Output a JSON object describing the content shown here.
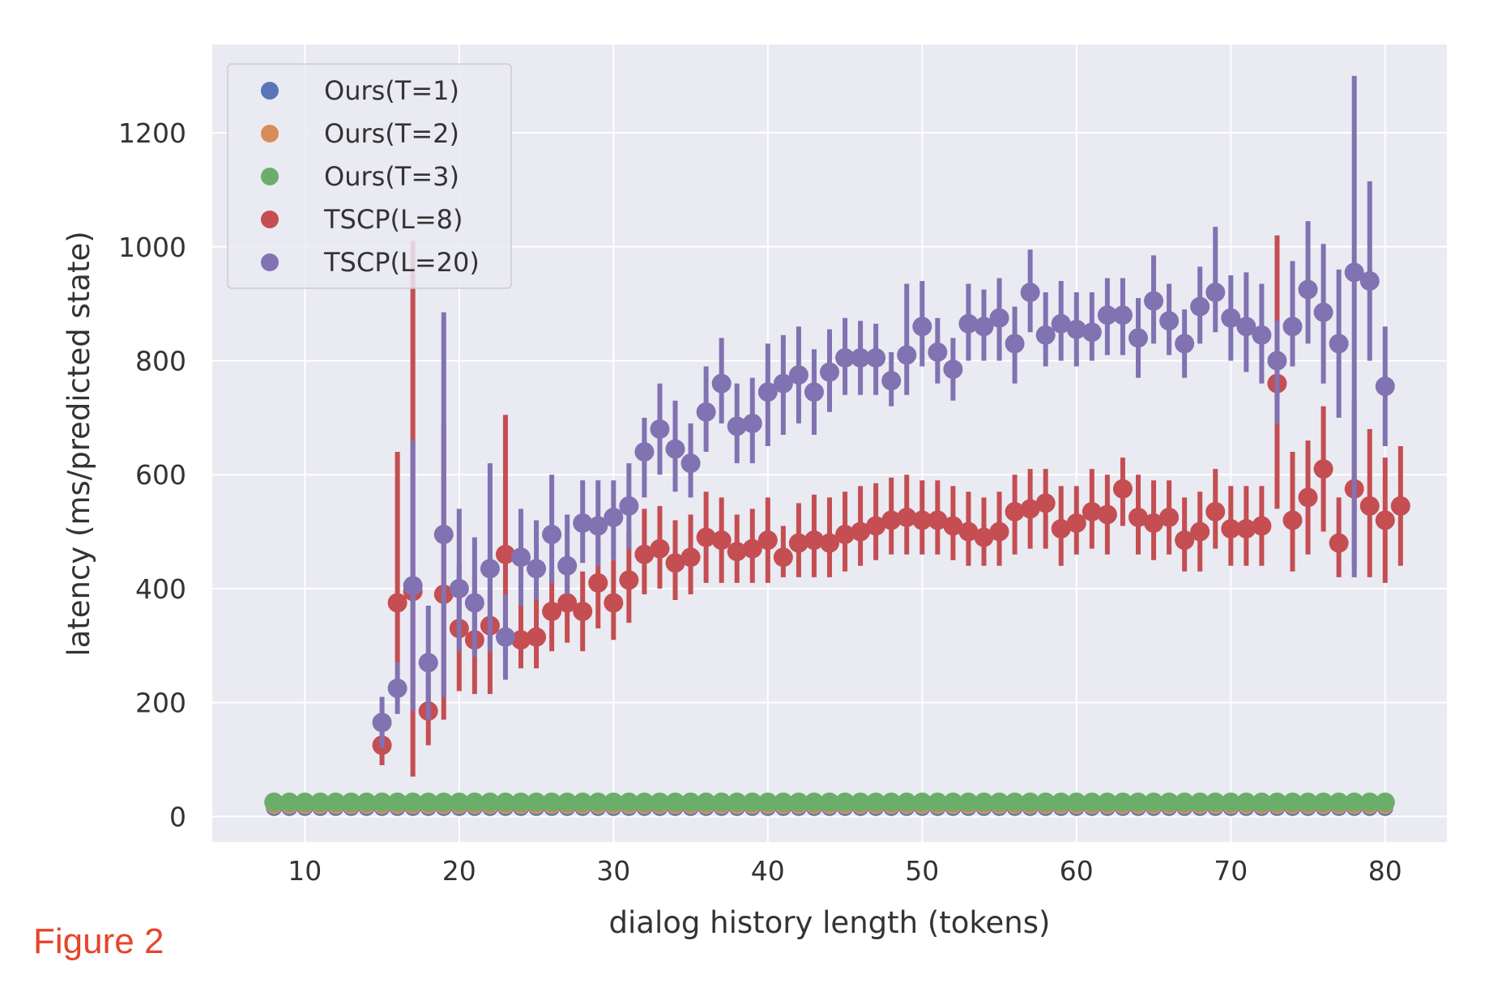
{
  "figure_label": "Figure 2",
  "chart_data": {
    "type": "scatter",
    "xlabel": "dialog history length (tokens)",
    "ylabel": "latency (ms/predicted state)",
    "xlim": [
      4,
      84
    ],
    "ylim": [
      -45,
      1355
    ],
    "x_ticks": [
      10,
      20,
      30,
      40,
      50,
      60,
      70,
      80
    ],
    "y_ticks": [
      0,
      200,
      400,
      600,
      800,
      1000,
      1200
    ],
    "grid": true,
    "legend_position": "top-left",
    "series": [
      {
        "name": "Ours(T=1)",
        "color": "#5975b8",
        "radius": 10,
        "x_start": 8,
        "x_end": 80,
        "y": [
          15,
          15,
          15,
          15,
          15,
          15,
          15,
          15,
          15,
          15,
          15,
          15,
          15,
          15,
          15,
          15,
          15,
          15,
          15,
          15,
          15,
          15,
          15,
          15,
          15,
          15,
          15,
          15,
          15,
          15,
          15,
          15,
          15,
          15,
          15,
          15,
          15,
          15,
          15,
          15,
          15,
          15,
          15,
          15,
          15,
          15,
          15,
          15,
          15,
          15,
          15,
          15,
          15,
          15,
          15,
          15,
          15,
          15,
          15,
          15,
          15,
          15,
          15,
          15,
          15,
          15,
          15,
          15,
          15,
          15,
          15,
          15,
          15
        ]
      },
      {
        "name": "Ours(T=2)",
        "color": "#d88c56",
        "radius": 10,
        "x_start": 8,
        "x_end": 80,
        "y": [
          18,
          18,
          18,
          18,
          18,
          18,
          18,
          18,
          18,
          18,
          18,
          18,
          18,
          18,
          18,
          18,
          18,
          18,
          18,
          18,
          18,
          18,
          18,
          18,
          18,
          18,
          18,
          18,
          18,
          18,
          18,
          18,
          18,
          18,
          18,
          18,
          18,
          18,
          18,
          18,
          18,
          18,
          18,
          18,
          18,
          18,
          18,
          18,
          18,
          18,
          18,
          18,
          18,
          18,
          18,
          18,
          18,
          18,
          18,
          18,
          18,
          18,
          18,
          18,
          18,
          18,
          18,
          18,
          18,
          18,
          18,
          18,
          18
        ]
      },
      {
        "name": "Ours(T=3)",
        "color": "#6aae6a",
        "radius": 12,
        "x_start": 8,
        "x_end": 80,
        "y": [
          25,
          25,
          25,
          25,
          25,
          25,
          25,
          25,
          25,
          25,
          25,
          25,
          25,
          25,
          25,
          25,
          25,
          25,
          25,
          25,
          25,
          25,
          25,
          25,
          25,
          25,
          25,
          25,
          25,
          25,
          25,
          25,
          25,
          25,
          25,
          25,
          25,
          25,
          25,
          25,
          25,
          25,
          25,
          25,
          25,
          25,
          25,
          25,
          25,
          25,
          25,
          25,
          25,
          25,
          25,
          25,
          25,
          25,
          25,
          25,
          25,
          25,
          25,
          25,
          25,
          25,
          25,
          25,
          25,
          25,
          25,
          25,
          25
        ]
      },
      {
        "name": "TSCP(L=8)",
        "color": "#c44e52",
        "radius": 12,
        "x_start": 15,
        "x_end": 80,
        "y": [
          125,
          375,
          395,
          185,
          390,
          330,
          310,
          335,
          460,
          310,
          315,
          360,
          375,
          360,
          410,
          375,
          415,
          460,
          470,
          445,
          455,
          490,
          485,
          465,
          470,
          485,
          455,
          480,
          485,
          480,
          495,
          500,
          510,
          520,
          525,
          520,
          520,
          510,
          500,
          490,
          500,
          535,
          540,
          550,
          505,
          515,
          535,
          530,
          575,
          525,
          515,
          525,
          485,
          500,
          535,
          505,
          505,
          510,
          760,
          520,
          560,
          610,
          480,
          575,
          545,
          520,
          545
        ],
        "lo": [
          90,
          270,
          70,
          125,
          170,
          220,
          215,
          215,
          280,
          260,
          260,
          290,
          305,
          290,
          330,
          310,
          340,
          390,
          400,
          380,
          390,
          410,
          410,
          410,
          410,
          410,
          420,
          420,
          420,
          420,
          430,
          440,
          450,
          460,
          460,
          460,
          460,
          450,
          440,
          440,
          440,
          460,
          470,
          470,
          440,
          460,
          470,
          460,
          510,
          460,
          450,
          460,
          430,
          430,
          470,
          440,
          440,
          440,
          540,
          430,
          460,
          500,
          420,
          440,
          420,
          410,
          440
        ],
        "hi": [
          160,
          640,
          1010,
          250,
          690,
          440,
          420,
          460,
          705,
          380,
          380,
          430,
          450,
          430,
          490,
          450,
          500,
          540,
          545,
          520,
          530,
          570,
          560,
          530,
          540,
          560,
          510,
          550,
          565,
          560,
          570,
          580,
          585,
          595,
          600,
          590,
          590,
          580,
          570,
          560,
          570,
          600,
          610,
          610,
          580,
          580,
          610,
          600,
          630,
          600,
          590,
          590,
          560,
          570,
          610,
          580,
          580,
          580,
          1020,
          640,
          660,
          720,
          560,
          730,
          680,
          630,
          650
        ]
      },
      {
        "name": "TSCP(L=20)",
        "color": "#8172b2",
        "radius": 12,
        "x_start": 15,
        "x_end": 80,
        "y": [
          165,
          225,
          405,
          270,
          495,
          400,
          375,
          435,
          315,
          455,
          435,
          495,
          440,
          515,
          510,
          525,
          545,
          640,
          680,
          645,
          620,
          710,
          760,
          685,
          690,
          745,
          760,
          775,
          745,
          780,
          805,
          805,
          805,
          765,
          810,
          860,
          815,
          785,
          865,
          860,
          875,
          830,
          920,
          845,
          865,
          855,
          850,
          880,
          880,
          840,
          905,
          870,
          830,
          895,
          920,
          875,
          860,
          845,
          800,
          860,
          925,
          885,
          830,
          955,
          940,
          755
        ],
        "lo": [
          120,
          180,
          185,
          170,
          210,
          290,
          280,
          290,
          240,
          370,
          380,
          410,
          390,
          445,
          440,
          450,
          470,
          560,
          600,
          570,
          560,
          640,
          690,
          620,
          620,
          650,
          670,
          690,
          670,
          710,
          740,
          740,
          740,
          720,
          740,
          790,
          760,
          730,
          800,
          800,
          800,
          760,
          850,
          790,
          800,
          790,
          800,
          810,
          810,
          770,
          830,
          810,
          770,
          830,
          850,
          800,
          780,
          760,
          690,
          790,
          830,
          760,
          700,
          420,
          800,
          650
        ],
        "hi": [
          210,
          270,
          660,
          370,
          885,
          540,
          490,
          620,
          390,
          540,
          520,
          600,
          530,
          590,
          590,
          590,
          620,
          700,
          760,
          730,
          690,
          790,
          840,
          760,
          770,
          830,
          845,
          860,
          820,
          855,
          875,
          870,
          865,
          815,
          935,
          940,
          875,
          840,
          935,
          925,
          945,
          895,
          995,
          920,
          940,
          920,
          920,
          945,
          945,
          910,
          985,
          935,
          890,
          965,
          1035,
          950,
          955,
          935,
          870,
          975,
          1045,
          1005,
          960,
          1300,
          1115,
          860
        ]
      }
    ]
  }
}
